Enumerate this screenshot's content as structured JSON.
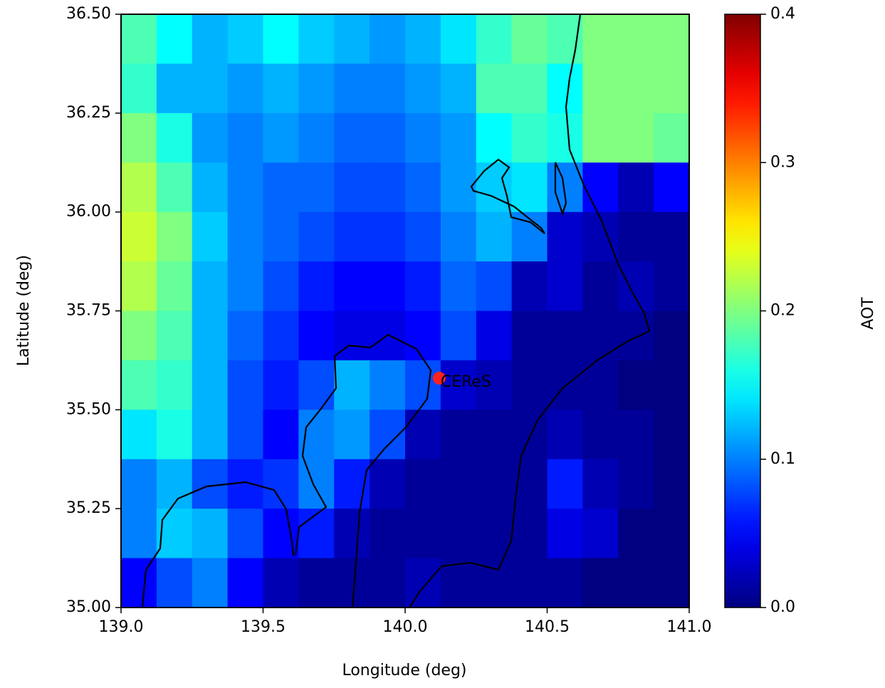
{
  "chart_data": {
    "type": "heatmap",
    "xlabel": "Longitude (deg)",
    "ylabel": "Latitude (deg)",
    "colorbar_label": "AOT",
    "colormap": "jet",
    "clim": [
      0,
      0.4
    ],
    "cticks": [
      {
        "value": 0,
        "label": "0.0"
      },
      0.1,
      0.2,
      0.3,
      0.4
    ],
    "xlim": [
      139,
      141
    ],
    "ylim": [
      35,
      36.5
    ],
    "xticks": [
      {
        "value": 139,
        "label": "139.0"
      },
      {
        "value": 139.5,
        "label": "139.5"
      },
      {
        "value": 140,
        "label": "140.0"
      },
      {
        "value": 140.5,
        "label": "140.5"
      },
      {
        "value": 141,
        "label": "141.0"
      }
    ],
    "yticks": [
      {
        "value": 35,
        "label": "35.00"
      },
      {
        "value": 35.25,
        "label": "35.25"
      },
      {
        "value": 35.5,
        "label": "35.50"
      },
      {
        "value": 35.75,
        "label": "35.75"
      },
      {
        "value": 36,
        "label": "36.00"
      },
      {
        "value": 36.25,
        "label": "36.25"
      },
      {
        "value": 36.5,
        "label": "36.50"
      }
    ],
    "x": [
      139.0625,
      139.1875,
      139.3125,
      139.4375,
      139.5625,
      139.6875,
      139.8125,
      139.9375,
      140.0625,
      140.1875,
      140.3125,
      140.4375,
      140.5625,
      140.6875,
      140.8125,
      140.9375
    ],
    "y": [
      36.4375,
      36.3125,
      36.1875,
      36.0625,
      35.9375,
      35.8125,
      35.6875,
      35.5625,
      35.4375,
      35.3125,
      35.1875,
      35.0625
    ],
    "values": [
      [
        0.18,
        0.15,
        0.12,
        0.13,
        0.15,
        0.13,
        0.12,
        0.11,
        0.12,
        0.14,
        0.17,
        0.19,
        0.18,
        0.2,
        0.2,
        0.2
      ],
      [
        0.17,
        0.12,
        0.12,
        0.11,
        0.12,
        0.11,
        0.1,
        0.1,
        0.11,
        0.12,
        0.18,
        0.18,
        0.15,
        0.2,
        0.2,
        0.2
      ],
      [
        0.2,
        0.16,
        0.11,
        0.1,
        0.11,
        0.1,
        0.09,
        0.09,
        0.1,
        0.11,
        0.15,
        0.17,
        0.16,
        0.2,
        0.2,
        0.19
      ],
      [
        0.22,
        0.18,
        0.12,
        0.1,
        0.09,
        0.09,
        0.08,
        0.08,
        0.09,
        0.11,
        0.13,
        0.14,
        0.1,
        0.05,
        0.02,
        0.05
      ],
      [
        0.23,
        0.2,
        0.13,
        0.1,
        0.09,
        0.08,
        0.07,
        0.07,
        0.08,
        0.1,
        0.12,
        0.1,
        0.03,
        0.02,
        0.01,
        0.01
      ],
      [
        0.22,
        0.19,
        0.12,
        0.1,
        0.08,
        0.06,
        0.05,
        0.05,
        0.06,
        0.09,
        0.08,
        0.02,
        0.03,
        0.01,
        0.02,
        0.01
      ],
      [
        0.2,
        0.18,
        0.12,
        0.09,
        0.07,
        0.05,
        0.04,
        0.04,
        0.05,
        0.08,
        0.04,
        0.01,
        0.01,
        0.01,
        0.01,
        0
      ],
      [
        0.18,
        0.17,
        0.12,
        0.08,
        0.06,
        0.08,
        0.12,
        0.1,
        0.08,
        0.03,
        0.02,
        0.01,
        0.01,
        0.01,
        0,
        0
      ],
      [
        0.14,
        0.16,
        0.12,
        0.08,
        0.05,
        0.1,
        0.11,
        0.08,
        0.02,
        0.01,
        0.01,
        0.01,
        0.02,
        0.01,
        0.01,
        0
      ],
      [
        0.1,
        0.12,
        0.08,
        0.06,
        0.07,
        0.1,
        0.06,
        0.02,
        0.01,
        0.01,
        0.01,
        0.01,
        0.06,
        0.02,
        0.01,
        0
      ],
      [
        0.1,
        0.13,
        0.12,
        0.08,
        0.05,
        0.06,
        0.02,
        0.01,
        0.01,
        0.01,
        0.01,
        0.01,
        0.04,
        0.03,
        0,
        0
      ],
      [
        0.05,
        0.08,
        0.1,
        0.05,
        0.02,
        0.01,
        0.01,
        0.01,
        0.02,
        0.01,
        0.01,
        0.01,
        0.01,
        0,
        0,
        0
      ]
    ],
    "points": [
      {
        "label": "CEReS",
        "x": 140.12,
        "y": 35.58,
        "color": "#ff2020"
      }
    ]
  }
}
